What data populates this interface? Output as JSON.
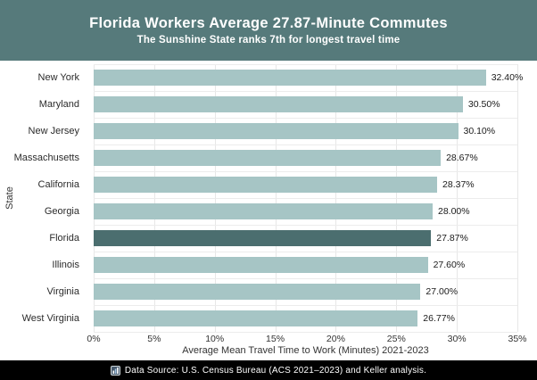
{
  "header": {
    "title": "Florida Workers Average 27.87-Minute Commutes",
    "subtitle": "The Sunshine State ranks 7th for longest travel time"
  },
  "colors": {
    "header_bg": "#567a7b",
    "bar_color": "#a6c5c5",
    "highlight_color": "#4b6e6f",
    "gridline": "#e9e9e9",
    "footer_bg": "#000000"
  },
  "chart_data": {
    "type": "bar",
    "orientation": "horizontal",
    "title": "Florida Workers Average 27.87-Minute Commutes",
    "subtitle": "The Sunshine State ranks 7th for longest travel time",
    "categories": [
      "New York",
      "Maryland",
      "New Jersey",
      "Massachusetts",
      "California",
      "Georgia",
      "Florida",
      "Illinois",
      "Virginia",
      "West Virginia"
    ],
    "values": [
      32.4,
      30.5,
      30.1,
      28.67,
      28.37,
      28.0,
      27.87,
      27.6,
      27.0,
      26.77
    ],
    "value_labels": [
      "32.40%",
      "30.50%",
      "30.10%",
      "28.67%",
      "28.37%",
      "28.00%",
      "27.87%",
      "27.60%",
      "27.00%",
      "26.77%"
    ],
    "highlight_category": "Florida",
    "xlabel": "Average Mean Travel Time to Work (Minutes) 2021-2023",
    "ylabel": "State",
    "xlim": [
      0,
      35
    ],
    "xticks": [
      "0%",
      "5%",
      "10%",
      "15%",
      "20%",
      "25%",
      "30%",
      "35%"
    ],
    "grid": true,
    "legend": "none"
  },
  "footer": {
    "icon": "chart-icon",
    "text": "Data Source: U.S. Census Bureau (ACS 2021–2023) and Keller analysis."
  }
}
